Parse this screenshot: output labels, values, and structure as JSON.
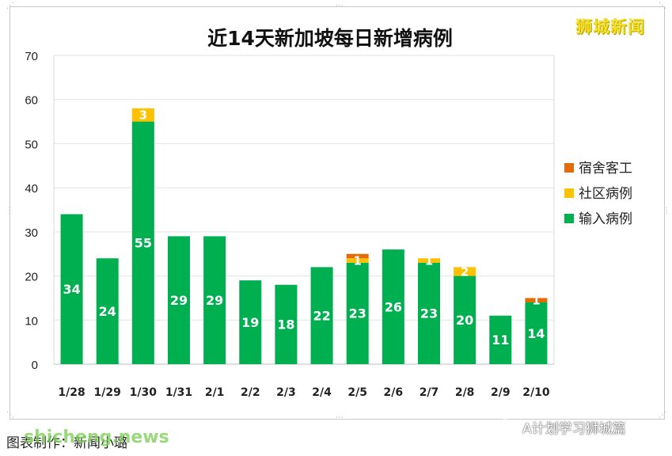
{
  "watermark": "狮城新闻",
  "credit_text": "图表制作：新闻小璐",
  "credit_overlay": "shicheng.news",
  "wechat_label": "A计划学习狮城篇",
  "chart_data": {
    "type": "bar",
    "stacked": true,
    "title": "近14天新加坡每日新增病例",
    "categories": [
      "1/28",
      "1/29",
      "1/30",
      "1/31",
      "2/1",
      "2/2",
      "2/3",
      "2/4",
      "2/5",
      "2/6",
      "2/7",
      "2/8",
      "2/9",
      "2/10"
    ],
    "series": [
      {
        "name": "输入病例",
        "color": "#00b050",
        "values": [
          34,
          24,
          55,
          29,
          29,
          19,
          18,
          22,
          23,
          26,
          23,
          20,
          11,
          14
        ]
      },
      {
        "name": "社区病例",
        "color": "#ffc000",
        "values": [
          0,
          0,
          3,
          0,
          0,
          0,
          0,
          0,
          1,
          0,
          1,
          2,
          0,
          0
        ]
      },
      {
        "name": "宿舍客工",
        "color": "#e36c09",
        "values": [
          0,
          0,
          0,
          0,
          0,
          0,
          0,
          0,
          1,
          0,
          0,
          0,
          0,
          1
        ]
      }
    ],
    "data_labels": [
      {
        "series": "输入病例",
        "values": [
          34,
          24,
          55,
          29,
          29,
          19,
          18,
          22,
          23,
          26,
          23,
          20,
          11,
          14
        ]
      },
      {
        "series": "社区病例",
        "values": [
          null,
          null,
          3,
          null,
          null,
          null,
          null,
          null,
          1,
          null,
          1,
          2,
          null,
          null
        ]
      },
      {
        "series": "宿舍客工",
        "values": [
          null,
          null,
          null,
          null,
          null,
          null,
          null,
          null,
          null,
          null,
          null,
          null,
          null,
          1
        ]
      }
    ],
    "legend_order": [
      "宿舍客工",
      "社区病例",
      "输入病例"
    ],
    "legend_position": "right",
    "ylim": [
      0,
      70
    ],
    "yticks": [
      0,
      10,
      20,
      30,
      40,
      50,
      60,
      70
    ],
    "grid": true
  }
}
